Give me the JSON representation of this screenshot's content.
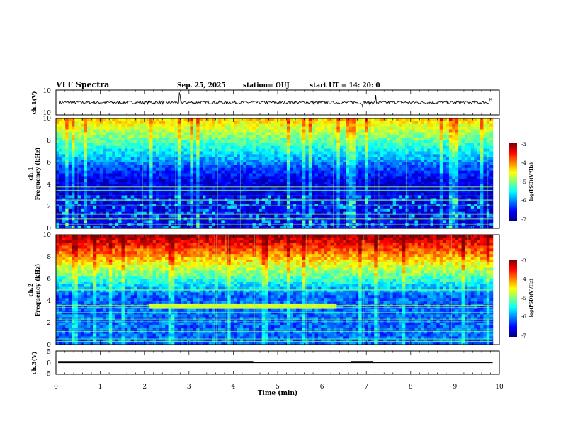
{
  "header": {
    "title": "VLF Spectra",
    "date": "Sep. 25, 2025",
    "station": "station= OUJ",
    "start": "start  UT =   14: 20: 0"
  },
  "chart_data": [
    {
      "type": "line",
      "panel": "ch1_waveform",
      "ylabel": "ch.1(V)",
      "yticks": [
        "10",
        "-10"
      ],
      "ylim": [
        -10,
        10
      ],
      "xlim": [
        0,
        10
      ],
      "series": [
        {
          "description_level": 0,
          "noise_amplitude": 1.2,
          "values_summary": "noisy trace around ~0 V with spikes near 2.8, 6.9, 7.2 and 9.8 min"
        }
      ]
    },
    {
      "type": "heatmap",
      "panel": "ch1_spectrogram",
      "ylabel": "Frequency (kHz)",
      "channel_label": "ch.1",
      "yticks": [
        "0",
        "2",
        "4",
        "6",
        "8",
        "10"
      ],
      "ylim": [
        0,
        10
      ],
      "xlim": [
        0,
        9.85
      ],
      "colorbar": {
        "ticks": [
          "-3",
          "-4",
          "-5",
          "-6",
          "-7"
        ],
        "label": "log(PSD)(V²/Hz)",
        "range": [
          -7,
          -3
        ]
      }
    },
    {
      "type": "heatmap",
      "panel": "ch2_spectrogram",
      "ylabel": "Frequency (kHz)",
      "channel_label": "ch.2",
      "yticks": [
        "0",
        "2",
        "4",
        "6",
        "8",
        "10"
      ],
      "ylim": [
        0,
        10
      ],
      "xlim": [
        0,
        9.85
      ],
      "features": [
        {
          "kind": "band",
          "t_start": 2.1,
          "t_end": 6.35,
          "f_low": 3.2,
          "f_high": 3.7
        }
      ],
      "colorbar": {
        "ticks": [
          "-3",
          "-4",
          "-5",
          "-6",
          "-7"
        ],
        "label": "log(PSD)(V²/Hz)",
        "range": [
          -7,
          -3
        ]
      }
    },
    {
      "type": "line",
      "panel": "ch3_status",
      "ylabel": "ch.3(V)",
      "yticks": [
        "5",
        "0",
        "-5"
      ],
      "ylim": [
        -5,
        5
      ],
      "xlim": [
        0,
        10
      ],
      "series": [
        {
          "x": [
            0.05,
            9.85
          ],
          "y": [
            0,
            0
          ]
        },
        {
          "x": [
            0.05,
            4.45
          ],
          "y": [
            0.3,
            0.3
          ]
        },
        {
          "x": [
            6.65,
            7.15
          ],
          "y": [
            0.3,
            0.3
          ]
        }
      ]
    }
  ],
  "xaxis": {
    "label": "Time  (min)",
    "ticks": [
      "0",
      "1",
      "2",
      "3",
      "4",
      "5",
      "6",
      "7",
      "8",
      "9",
      "10"
    ]
  },
  "colors": {
    "jet": [
      "#00007f",
      "#0000ff",
      "#007fff",
      "#00ffff",
      "#7fff7f",
      "#ffff00",
      "#ff7f00",
      "#ff0000",
      "#7f0000"
    ]
  }
}
